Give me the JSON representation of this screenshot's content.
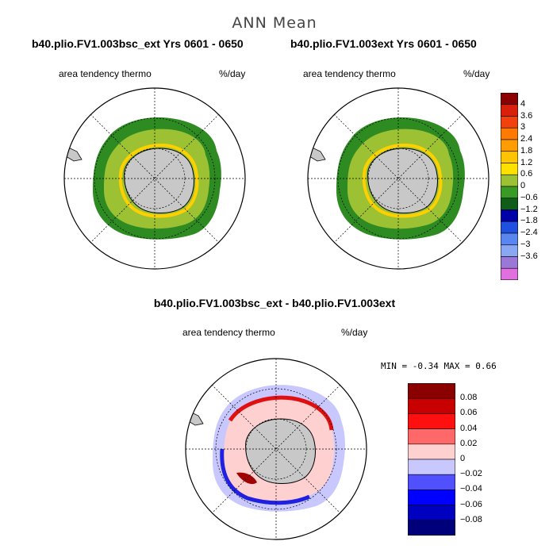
{
  "header": {
    "main_title": "ANN Mean"
  },
  "panels": [
    {
      "run_title": "b40.plio.FV1.003bsc_ext  Yrs 0601 - 0650",
      "variable": "area tendency thermo",
      "units": "%/day"
    },
    {
      "run_title": "b40.plio.FV1.003ext  Yrs 0601 - 0650",
      "variable": "area tendency thermo",
      "units": "%/day"
    }
  ],
  "difference": {
    "title": "b40.plio.FV1.003bsc_ext - b40.plio.FV1.003ext",
    "variable": "area tendency thermo",
    "units": "%/day",
    "stats": "MIN =   -0.34 MAX =    0.66"
  },
  "chart_data": [
    {
      "type": "heatmap",
      "projection": "south-polar-stereographic",
      "title": "b40.plio.FV1.003bsc_ext  Yrs 0601 - 0650",
      "field": "area tendency thermo",
      "units": "%/day",
      "colorbar_levels": [
        "4",
        "3.6",
        "3",
        "2.4",
        "1.8",
        "1.2",
        "0.6",
        "0",
        "−0.6",
        "−1.2",
        "−1.8",
        "−2.4",
        "−3",
        "−3.6"
      ],
      "colorbar_colors": [
        "#8b0000",
        "#d9200a",
        "#f2400e",
        "#ff7a00",
        "#ff9c00",
        "#ffc400",
        "#ffe100",
        "#9cc234",
        "#3a9a26",
        "#0f5d18",
        "#0000a8",
        "#2050e0",
        "#5a86f0",
        "#8aa7f3",
        "#9a78d8",
        "#e070e0"
      ]
    },
    {
      "type": "heatmap",
      "projection": "south-polar-stereographic",
      "title": "b40.plio.FV1.003ext  Yrs 0601 - 0650",
      "field": "area tendency thermo",
      "units": "%/day"
    },
    {
      "type": "heatmap",
      "projection": "south-polar-stereographic",
      "title": "b40.plio.FV1.003bsc_ext - b40.plio.FV1.003ext",
      "field": "area tendency thermo",
      "units": "%/day",
      "min": -0.34,
      "max": 0.66,
      "colorbar_levels": [
        "0.08",
        "0.06",
        "0.04",
        "0.02",
        "0",
        "−0.02",
        "−0.04",
        "−0.06",
        "−0.08"
      ],
      "colorbar_colors": [
        "#8b0000",
        "#c80000",
        "#ff1010",
        "#ff6868",
        "#ffd0d0",
        "#c8c8ff",
        "#5050ff",
        "#0000ff",
        "#0000c0",
        "#00007a"
      ]
    }
  ]
}
